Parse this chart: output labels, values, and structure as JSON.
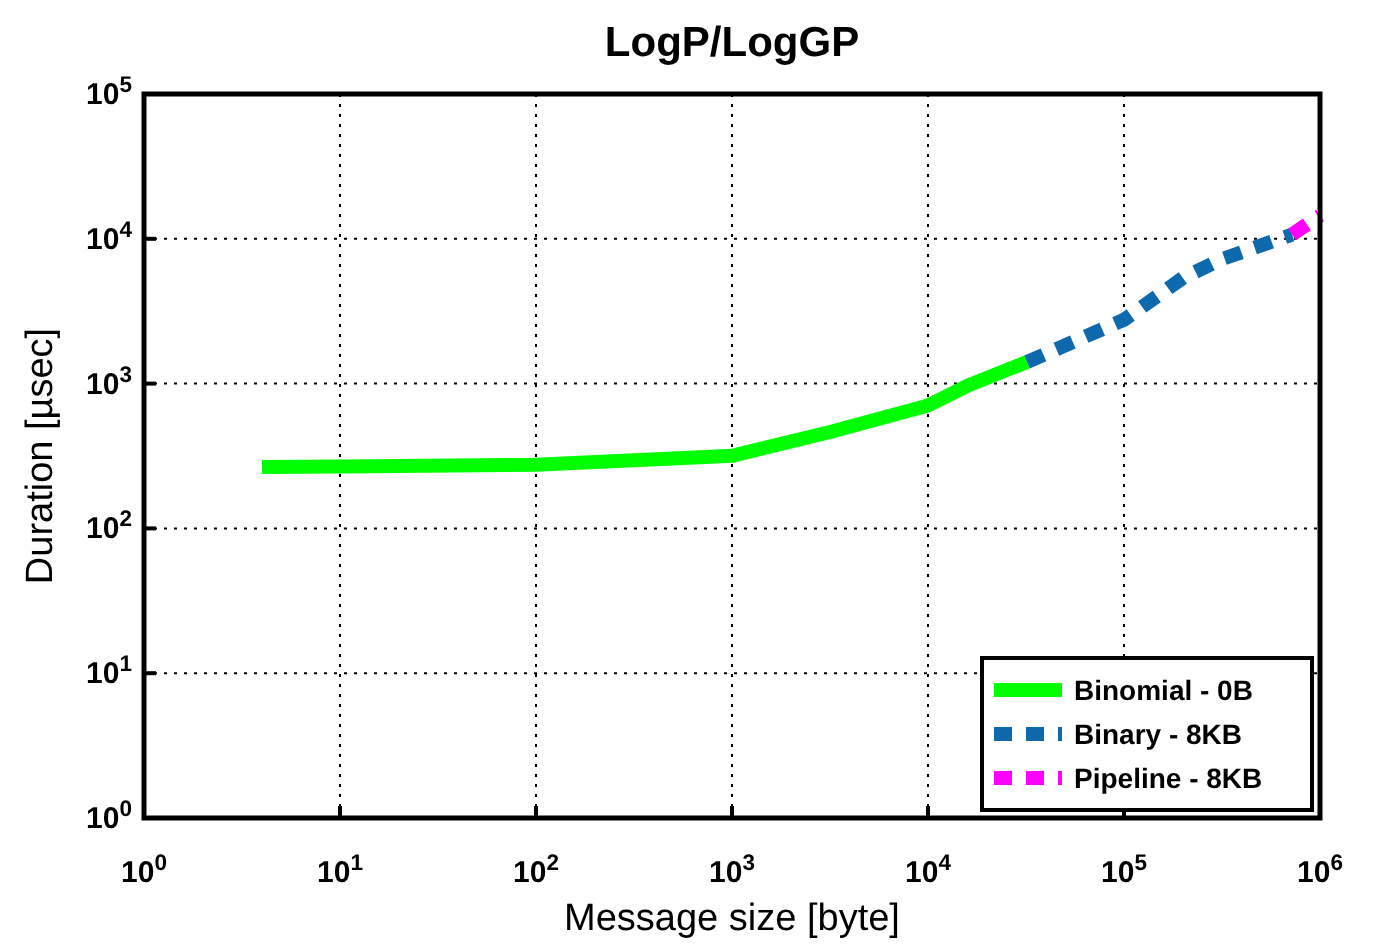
{
  "chart_data": {
    "type": "line",
    "title": "LogP/LogGP",
    "xlabel": "Message size [byte]",
    "ylabel": "Duration [µsec]",
    "log": "xy",
    "grid": true,
    "legend": "bottom right",
    "xlim": [
      1,
      1000000
    ],
    "ylim": [
      1,
      100000
    ],
    "xticks": [
      {
        "value": 1,
        "label": "10$^{0}$"
      },
      {
        "value": 10,
        "label": "10$^{1}$"
      },
      {
        "value": 100,
        "label": "10$^{2}$"
      },
      {
        "value": 1000,
        "label": "10$^{3}$"
      },
      {
        "value": 10000,
        "label": "10$^{4}$"
      },
      {
        "value": 100000,
        "label": "10$^{5}$"
      },
      {
        "value": 1000000,
        "label": "10$^{6}$"
      }
    ],
    "yticks": [
      {
        "value": 1,
        "label": "10$^{0}$"
      },
      {
        "value": 10,
        "label": "10$^{1}$"
      },
      {
        "value": 100,
        "label": "10$^{2}$"
      },
      {
        "value": 1000,
        "label": "10$^{3}$"
      },
      {
        "value": 10000,
        "label": "10$^{4}$"
      },
      {
        "value": 100000,
        "label": "10$^{5}$"
      }
    ],
    "series": [
      {
        "name": "Binomial - 0B",
        "color": "#00ff00",
        "line_style": "solid",
        "x": [
          4,
          10,
          100,
          1000,
          3200,
          10000,
          16000,
          32000
        ],
        "values": [
          265,
          268,
          275,
          317,
          465,
          705,
          970,
          1410
        ]
      },
      {
        "name": "Binary - 8KB",
        "color": "#0e6aad",
        "line_style": "dashed",
        "x": [
          32000,
          100000,
          200000,
          316000,
          720000
        ],
        "values": [
          1410,
          2760,
          5370,
          7240,
          10700
        ]
      },
      {
        "name": "Pipeline - 8KB",
        "color": "#ff00ff",
        "line_style": "dashed",
        "x": [
          720000,
          1000000
        ],
        "values": [
          10700,
          14500
        ]
      }
    ]
  }
}
